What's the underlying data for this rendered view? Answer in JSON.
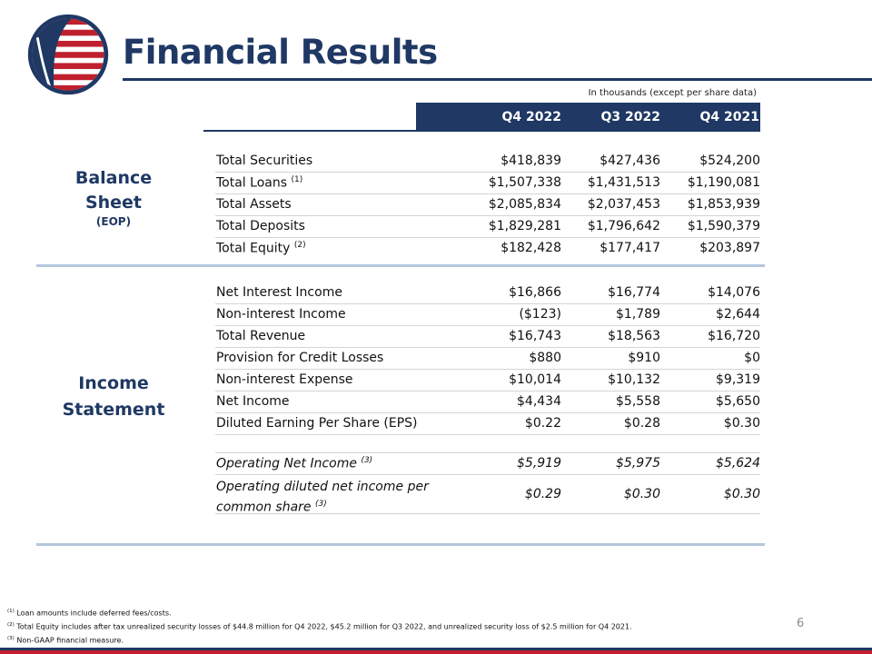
{
  "header": {
    "title": "Financial Results",
    "units_note": "In thousands (except per share data)"
  },
  "columns": [
    "Q4 2022",
    "Q3 2022",
    "Q4 2021"
  ],
  "balance_sheet": {
    "label_line1": "Balance",
    "label_line2": "Sheet",
    "label_line3": "(EOP)",
    "rows": [
      {
        "label": "Total Securities",
        "note": "",
        "values": [
          "$418,839",
          "$427,436",
          "$524,200"
        ]
      },
      {
        "label": "Total Loans",
        "note": "(1)",
        "values": [
          "$1,507,338",
          "$1,431,513",
          "$1,190,081"
        ]
      },
      {
        "label": "Total Assets",
        "note": "",
        "values": [
          "$2,085,834",
          "$2,037,453",
          "$1,853,939"
        ]
      },
      {
        "label": "Total Deposits",
        "note": "",
        "values": [
          "$1,829,281",
          "$1,796,642",
          "$1,590,379"
        ]
      },
      {
        "label": "Total Equity",
        "note": "(2)",
        "values": [
          "$182,428",
          "$177,417",
          "$203,897"
        ]
      }
    ]
  },
  "income_statement": {
    "label_line1": "Income",
    "label_line2": "Statement",
    "rows": [
      {
        "label": "Net Interest Income",
        "note": "",
        "values": [
          "$16,866",
          "$16,774",
          "$14,076"
        ]
      },
      {
        "label": "Non-interest Income",
        "note": "",
        "values": [
          "($123)",
          "$1,789",
          "$2,644"
        ]
      },
      {
        "label": "Total Revenue",
        "note": "",
        "values": [
          "$16,743",
          "$18,563",
          "$16,720"
        ]
      },
      {
        "label": "Provision for Credit Losses",
        "note": "",
        "values": [
          "$880",
          "$910",
          "$0"
        ]
      },
      {
        "label": "Non-interest Expense",
        "note": "",
        "values": [
          "$10,014",
          "$10,132",
          "$9,319"
        ]
      },
      {
        "label": "Net Income",
        "note": "",
        "values": [
          "$4,434",
          "$5,558",
          "$5,650"
        ]
      },
      {
        "label": "Diluted Earning Per Share (EPS)",
        "note": "",
        "values": [
          "$0.22",
          "$0.28",
          "$0.30"
        ]
      }
    ],
    "non_gaap_rows": [
      {
        "label": "Operating Net Income",
        "note": "(3)",
        "values": [
          "$5,919",
          "$5,975",
          "$5,624"
        ]
      },
      {
        "label_line1": "Operating diluted net income per",
        "label_line2": "common share",
        "note": "(3)",
        "values": [
          "$0.29",
          "$0.30",
          "$0.30"
        ]
      }
    ]
  },
  "footnotes": [
    {
      "mark": "(1)",
      "text": "Loan amounts include deferred fees/costs."
    },
    {
      "mark": "(2)",
      "text": "Total Equity includes after tax unrealized security losses of $44.8 million for Q4 2022, $45.2 million for Q3 2022, and unrealized security loss of $2.5 million for Q4 2021."
    },
    {
      "mark": "(3)",
      "text": "Non-GAAP financial measure."
    }
  ],
  "page_number": "6",
  "colors": {
    "brand_navy": "#1f3864",
    "brand_red": "#c0202e",
    "section_rule": "#b4c6dc"
  },
  "icons": {
    "logo": "flag-globe-logo"
  }
}
